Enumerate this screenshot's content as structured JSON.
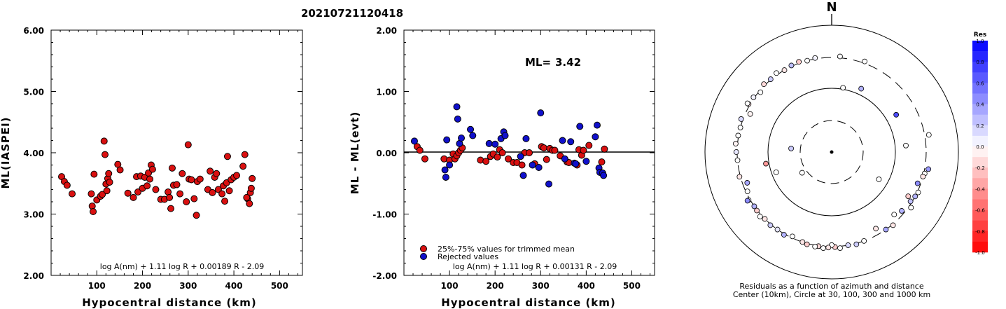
{
  "title": "20210721120418",
  "chart_data": [
    {
      "type": "scatter",
      "ylabel": "ML(IASPEI)",
      "xlabel": "Hypocentral distance (km)",
      "xlim": [
        0,
        550
      ],
      "ylim": [
        2.0,
        6.0
      ],
      "xticks": [
        "100",
        "200",
        "300",
        "400",
        "500"
      ],
      "yticks": [
        "2.00",
        "3.00",
        "4.00",
        "5.00",
        "6.00"
      ],
      "formula": "log A(nm) + 1.11 log R + 0.00189 R - 2.09",
      "marker_color": "#d91010",
      "points": [
        [
          23,
          3.61
        ],
        [
          29,
          3.53
        ],
        [
          35,
          3.47
        ],
        [
          46,
          3.33
        ],
        [
          88,
          3.33
        ],
        [
          90,
          3.13
        ],
        [
          92,
          3.04
        ],
        [
          94,
          3.65
        ],
        [
          100,
          3.23
        ],
        [
          108,
          3.29
        ],
        [
          112,
          3.32
        ],
        [
          116,
          4.19
        ],
        [
          118,
          3.97
        ],
        [
          120,
          3.49
        ],
        [
          122,
          3.38
        ],
        [
          124,
          3.58
        ],
        [
          126,
          3.66
        ],
        [
          128,
          3.52
        ],
        [
          146,
          3.81
        ],
        [
          151,
          3.72
        ],
        [
          168,
          3.34
        ],
        [
          180,
          3.27
        ],
        [
          187,
          3.61
        ],
        [
          190,
          3.36
        ],
        [
          196,
          3.62
        ],
        [
          200,
          3.42
        ],
        [
          205,
          3.6
        ],
        [
          210,
          3.46
        ],
        [
          213,
          3.67
        ],
        [
          216,
          3.57
        ],
        [
          219,
          3.8
        ],
        [
          222,
          3.73
        ],
        [
          229,
          3.4
        ],
        [
          240,
          3.24
        ],
        [
          248,
          3.24
        ],
        [
          256,
          3.36
        ],
        [
          259,
          3.27
        ],
        [
          262,
          3.09
        ],
        [
          265,
          3.75
        ],
        [
          268,
          3.47
        ],
        [
          275,
          3.48
        ],
        [
          282,
          3.33
        ],
        [
          287,
          3.66
        ],
        [
          296,
          3.2
        ],
        [
          300,
          4.13
        ],
        [
          302,
          3.57
        ],
        [
          307,
          3.56
        ],
        [
          313,
          3.25
        ],
        [
          318,
          2.98
        ],
        [
          320,
          3.53
        ],
        [
          326,
          3.57
        ],
        [
          343,
          3.4
        ],
        [
          348,
          3.7
        ],
        [
          353,
          3.35
        ],
        [
          358,
          3.6
        ],
        [
          362,
          3.66
        ],
        [
          366,
          3.4
        ],
        [
          374,
          3.33
        ],
        [
          377,
          3.46
        ],
        [
          380,
          3.21
        ],
        [
          384,
          3.51
        ],
        [
          386,
          3.94
        ],
        [
          390,
          3.38
        ],
        [
          394,
          3.56
        ],
        [
          400,
          3.6
        ],
        [
          406,
          3.63
        ],
        [
          420,
          3.78
        ],
        [
          424,
          3.97
        ],
        [
          430,
          3.25
        ],
        [
          434,
          3.17
        ],
        [
          436,
          3.35
        ],
        [
          438,
          3.42
        ],
        [
          440,
          3.58
        ],
        [
          428,
          3.27
        ]
      ]
    },
    {
      "type": "scatter",
      "ylabel": "ML - ML(evt)",
      "xlabel": "Hypocentral distance (km)",
      "xlim": [
        0,
        550
      ],
      "ylim": [
        -2.0,
        2.0
      ],
      "xticks": [
        "100",
        "200",
        "300",
        "400",
        "500"
      ],
      "yticks": [
        "-2.00",
        "-1.00",
        "0.00",
        "1.00",
        "2.00"
      ],
      "ml_label": "ML=",
      "ml_value": "3.42",
      "formula": "log A(nm) + 1.11 log R + 0.00131 R - 2.09",
      "legend": [
        {
          "label": "25%-75% values for trimmed mean",
          "color": "#d91010"
        },
        {
          "label": "Rejected values",
          "color": "#1010cc"
        }
      ],
      "series": [
        {
          "name": "25%-75% values for trimmed mean",
          "color": "#d91010",
          "points": [
            [
              29,
              0.1
            ],
            [
              35,
              0.04
            ],
            [
              46,
              -0.1
            ],
            [
              88,
              -0.1
            ],
            [
              100,
              -0.12
            ],
            [
              108,
              -0.02
            ],
            [
              112,
              -0.1
            ],
            [
              116,
              -0.05
            ],
            [
              120,
              0.0
            ],
            [
              124,
              0.04
            ],
            [
              128,
              0.08
            ],
            [
              168,
              -0.12
            ],
            [
              180,
              -0.14
            ],
            [
              190,
              -0.06
            ],
            [
              196,
              -0.02
            ],
            [
              205,
              -0.07
            ],
            [
              210,
              0.05
            ],
            [
              216,
              0.0
            ],
            [
              229,
              -0.1
            ],
            [
              240,
              -0.16
            ],
            [
              248,
              -0.16
            ],
            [
              259,
              -0.2
            ],
            [
              265,
              0.0
            ],
            [
              275,
              0.0
            ],
            [
              287,
              -0.18
            ],
            [
              302,
              0.1
            ],
            [
              307,
              0.08
            ],
            [
              313,
              -0.11
            ],
            [
              320,
              0.07
            ],
            [
              326,
              0.04
            ],
            [
              331,
              0.04
            ],
            [
              343,
              -0.05
            ],
            [
              358,
              -0.15
            ],
            [
              362,
              -0.16
            ],
            [
              380,
              -0.2
            ],
            [
              384,
              0.05
            ],
            [
              390,
              -0.04
            ],
            [
              394,
              0.04
            ],
            [
              406,
              0.12
            ],
            [
              434,
              -0.15
            ],
            [
              440,
              0.06
            ]
          ]
        },
        {
          "name": "Rejected values",
          "color": "#1010cc",
          "points": [
            [
              23,
              0.19
            ],
            [
              90,
              -0.28
            ],
            [
              92,
              -0.4
            ],
            [
              94,
              0.21
            ],
            [
              100,
              -0.2
            ],
            [
              116,
              0.75
            ],
            [
              118,
              0.55
            ],
            [
              122,
              0.15
            ],
            [
              126,
              0.24
            ],
            [
              146,
              0.38
            ],
            [
              151,
              0.28
            ],
            [
              187,
              0.15
            ],
            [
              200,
              0.14
            ],
            [
              213,
              0.23
            ],
            [
              219,
              0.34
            ],
            [
              222,
              0.28
            ],
            [
              256,
              -0.06
            ],
            [
              262,
              -0.37
            ],
            [
              268,
              0.23
            ],
            [
              282,
              -0.2
            ],
            [
              296,
              -0.24
            ],
            [
              300,
              0.65
            ],
            [
              318,
              -0.51
            ],
            [
              348,
              0.2
            ],
            [
              353,
              -0.1
            ],
            [
              366,
              0.18
            ],
            [
              374,
              -0.17
            ],
            [
              377,
              -0.18
            ],
            [
              386,
              0.43
            ],
            [
              400,
              -0.14
            ],
            [
              420,
              0.26
            ],
            [
              424,
              0.45
            ],
            [
              428,
              -0.25
            ],
            [
              430,
              -0.32
            ],
            [
              436,
              -0.33
            ],
            [
              438,
              -0.37
            ]
          ]
        }
      ]
    },
    {
      "type": "scatter",
      "subtype": "polar-residual-map",
      "north_label": "N",
      "caption_line1": "Residuals as a function of azimuth and distance",
      "caption_line2": "Center (10km), Circle at 30, 100, 300 and 1000 km",
      "colorbar_title": "Res",
      "colorbar_ticks": [
        "1.0",
        "0.8",
        "0.6",
        "0.4",
        "0.2",
        "0.0",
        "-0.2",
        "-0.4",
        "-0.6",
        "-0.8",
        "-1.0"
      ],
      "rings_km": [
        10,
        30,
        100,
        300,
        1000
      ],
      "points": [
        [
          305,
          320,
          0.05
        ],
        [
          300,
          330,
          -0.1
        ],
        [
          310,
          290,
          0.0
        ],
        [
          290,
          340,
          0.15
        ],
        [
          285,
          300,
          0.0
        ],
        [
          295,
          270,
          -0.05
        ],
        [
          315,
          330,
          -0.15
        ],
        [
          320,
          310,
          0.2
        ],
        [
          325,
          340,
          0.0
        ],
        [
          330,
          300,
          -0.1
        ],
        [
          335,
          320,
          0.25
        ],
        [
          340,
          330,
          -0.2
        ],
        [
          345,
          300,
          0.0
        ],
        [
          350,
          320,
          0.05
        ],
        [
          5,
          330,
          0.0
        ],
        [
          20,
          340,
          0.0
        ],
        [
          25,
          140,
          0.3
        ],
        [
          10,
          110,
          0.0
        ],
        [
          60,
          170,
          0.7
        ],
        [
          80,
          390,
          0.0
        ],
        [
          100,
          380,
          0.4
        ],
        [
          103,
          320,
          0.0
        ],
        [
          105,
          300,
          -0.1
        ],
        [
          110,
          280,
          0.45
        ],
        [
          115,
          320,
          0.0
        ],
        [
          118,
          300,
          0.3
        ],
        [
          120,
          260,
          -0.2
        ],
        [
          122,
          290,
          0.25
        ],
        [
          130,
          280,
          0.3
        ],
        [
          135,
          260,
          0.0
        ],
        [
          140,
          320,
          -0.1
        ],
        [
          145,
          300,
          0.35
        ],
        [
          150,
          260,
          -0.1
        ],
        [
          160,
          300,
          0.0
        ],
        [
          165,
          320,
          0.2
        ],
        [
          170,
          300,
          0.15
        ],
        [
          175,
          340,
          0.0
        ],
        [
          178,
          310,
          -0.2
        ],
        [
          180,
          290,
          0.0
        ],
        [
          182,
          320,
          -0.1
        ],
        [
          185,
          340,
          0.0
        ],
        [
          188,
          310,
          -0.15
        ],
        [
          190,
          330,
          0.0
        ],
        [
          195,
          320,
          -0.2
        ],
        [
          198,
          300,
          -0.1
        ],
        [
          205,
          290,
          0.0
        ],
        [
          210,
          320,
          0.3
        ],
        [
          215,
          300,
          0.1
        ],
        [
          220,
          320,
          0.2
        ],
        [
          225,
          300,
          -0.1
        ],
        [
          228,
          340,
          0.0
        ],
        [
          232,
          310,
          -0.2
        ],
        [
          235,
          300,
          0.3
        ],
        [
          240,
          330,
          0.05
        ],
        [
          245,
          290,
          0.0
        ],
        [
          250,
          270,
          0.35
        ],
        [
          255,
          320,
          -0.1
        ],
        [
          260,
          120,
          -0.4
        ],
        [
          265,
          300,
          0.0
        ],
        [
          270,
          320,
          0.1
        ],
        [
          275,
          340,
          -0.05
        ],
        [
          280,
          310,
          0.0
        ],
        [
          235,
          40,
          0.0
        ],
        [
          275,
          50,
          0.2
        ],
        [
          250,
          90,
          0.0
        ],
        [
          300,
          360,
          0.0
        ],
        [
          240,
          360,
          0.45
        ],
        [
          125,
          350,
          0.0
        ],
        [
          85,
          170,
          0.0
        ],
        [
          120,
          80,
          0.0
        ]
      ]
    }
  ]
}
